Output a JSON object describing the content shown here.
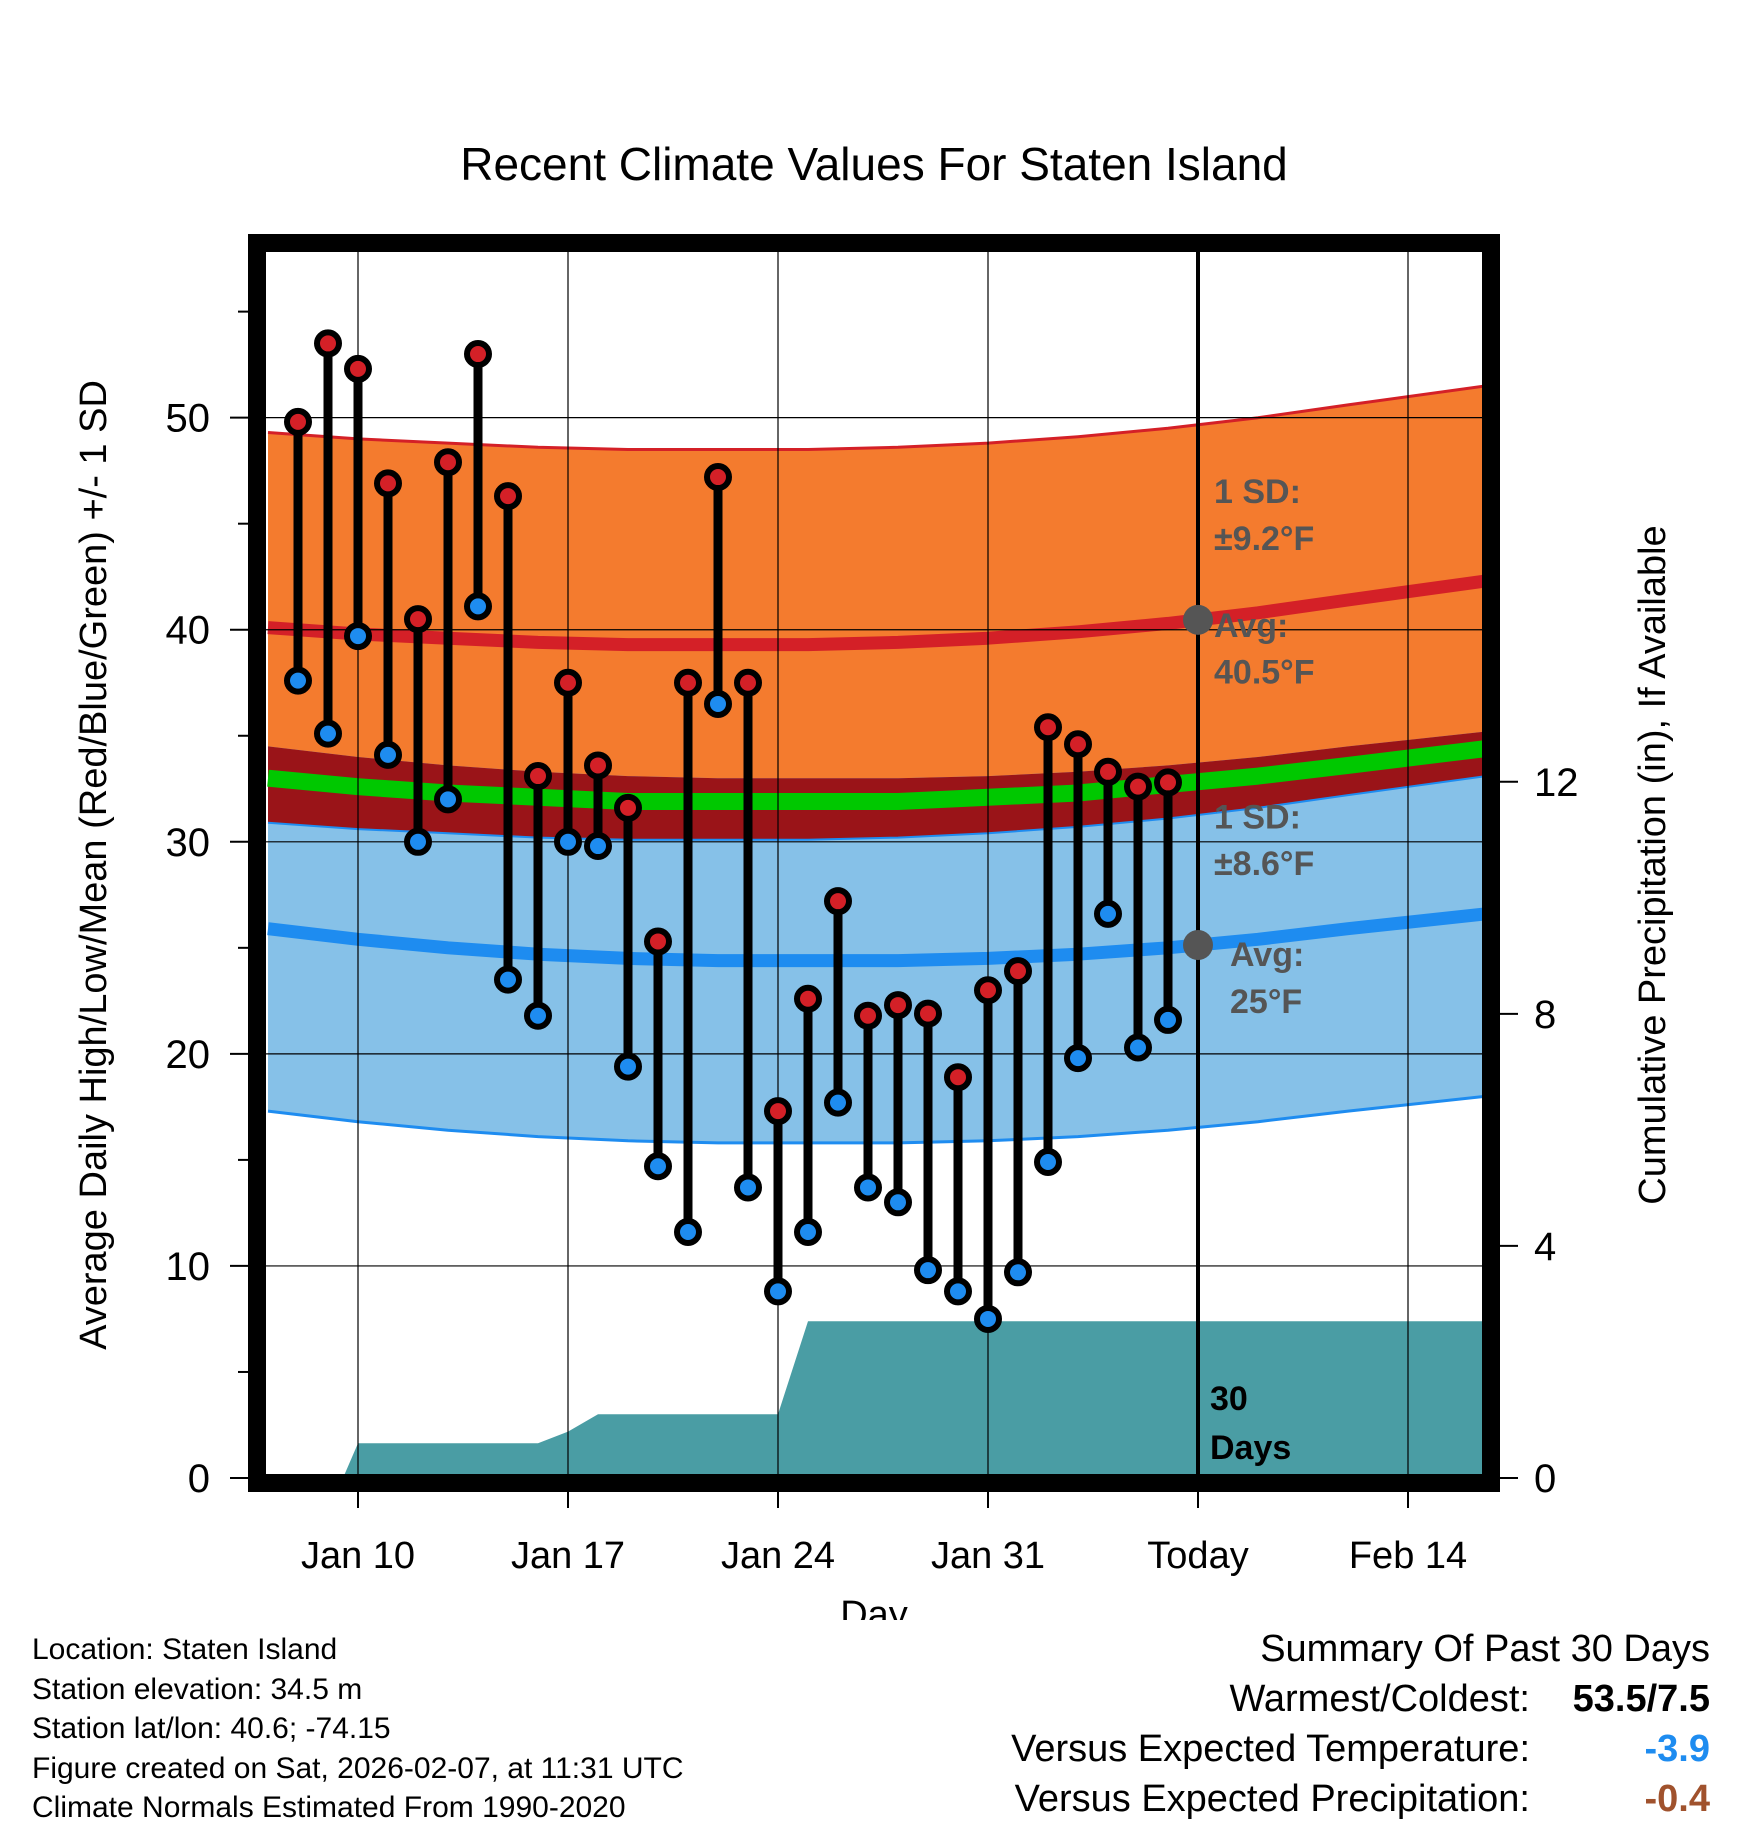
{
  "chart_data": {
    "type": "line",
    "title": "Recent Climate Values For Staten Island",
    "xlabel": "Day",
    "ylabel": "Average Daily High/Low/Mean (Red/Blue/Green) +/- 1 SD",
    "y2label": "Cumulative Precipitation (in), If Available",
    "x_tick_labels": [
      {
        "day": 10,
        "label": "Jan 10"
      },
      {
        "day": 17,
        "label": "Jan 17"
      },
      {
        "day": 24,
        "label": "Jan 24"
      },
      {
        "day": 31,
        "label": "Jan 31"
      },
      {
        "day": 38,
        "label": "Today"
      },
      {
        "day": 45,
        "label": "Feb 14"
      }
    ],
    "xlim": [
      6.8,
      47.6
    ],
    "today_day": 38,
    "ylim": [
      0,
      58
    ],
    "y_ticks": [
      0,
      10,
      20,
      30,
      40,
      50
    ],
    "y_minor_ticks": [
      5,
      15,
      25,
      35,
      45,
      55
    ],
    "y2lim": [
      0,
      21.2
    ],
    "y2_ticks": [
      0,
      4,
      8,
      12
    ],
    "days": [
      8,
      9,
      10,
      11,
      12,
      13,
      14,
      15,
      16,
      17,
      18,
      19,
      20,
      21,
      22,
      23,
      24,
      25,
      26,
      27,
      28,
      29,
      30,
      31,
      32,
      33,
      34,
      35,
      36,
      37
    ],
    "daily_high": [
      49.8,
      53.5,
      52.3,
      46.9,
      40.5,
      47.9,
      53.0,
      46.3,
      33.1,
      37.5,
      33.6,
      31.6,
      25.3,
      37.5,
      47.2,
      37.5,
      17.3,
      22.6,
      27.2,
      21.8,
      22.3,
      21.9,
      18.9,
      23.0,
      23.9,
      35.4,
      34.6,
      33.3,
      32.6,
      32.8
    ],
    "daily_low": [
      37.6,
      35.1,
      39.7,
      34.1,
      30.0,
      32.0,
      41.1,
      23.5,
      21.8,
      30.0,
      29.8,
      19.4,
      14.7,
      11.6,
      36.5,
      13.7,
      8.8,
      11.6,
      17.7,
      13.7,
      13.0,
      9.8,
      8.8,
      7.5,
      9.7,
      14.9,
      19.8,
      26.6,
      20.3,
      21.6
    ],
    "normal_high": {
      "days": [
        7,
        10,
        13,
        16,
        19,
        22,
        25,
        28,
        31,
        34,
        37,
        40,
        43,
        47.6
      ],
      "avg": [
        40.1,
        39.8,
        39.6,
        39.4,
        39.3,
        39.3,
        39.3,
        39.4,
        39.6,
        39.9,
        40.3,
        40.8,
        41.4,
        42.3
      ],
      "sd": 9.2,
      "label_sd": "1 SD:",
      "label_sd_value": "±9.2°F",
      "label_avg": "Avg:",
      "label_avg_value": "40.5°F"
    },
    "normal_low": {
      "days": [
        7,
        10,
        13,
        16,
        19,
        22,
        25,
        28,
        31,
        34,
        37,
        40,
        43,
        47.6
      ],
      "avg": [
        25.9,
        25.4,
        25.0,
        24.7,
        24.5,
        24.4,
        24.4,
        24.4,
        24.5,
        24.7,
        25.0,
        25.4,
        25.9,
        26.6
      ],
      "sd": 8.6,
      "label_sd": "1 SD:",
      "label_sd_value": "±8.6°F",
      "label_avg": "Avg:",
      "label_avg_value": "25°F"
    },
    "normal_mean": {
      "days": [
        7,
        10,
        13,
        16,
        19,
        22,
        25,
        28,
        31,
        34,
        37,
        40,
        43,
        47.6
      ],
      "avg": [
        33.0,
        32.6,
        32.3,
        32.1,
        31.9,
        31.9,
        31.9,
        31.9,
        32.1,
        32.3,
        32.7,
        33.1,
        33.6,
        34.4
      ]
    },
    "cumulative_precip": {
      "days": [
        7,
        9.5,
        10,
        16,
        17,
        18,
        24,
        25,
        47.6
      ],
      "values": [
        0,
        0,
        0.6,
        0.6,
        0.8,
        1.1,
        1.1,
        2.7,
        2.7
      ]
    },
    "precip_label": "30 Days",
    "colors": {
      "high_band": "#f47b2e",
      "high_line": "#d42027",
      "low_band": "#86c1e8",
      "low_line": "#1e8cf0",
      "mean_band": "#9a1418",
      "mean_line": "#00c800",
      "precip": "#4a9da4",
      "high_dot": "#d42027",
      "low_dot": "#1e8cf0",
      "normal_marker": "#555555",
      "label_gray": "#555555"
    }
  },
  "info": {
    "location": "Location: Staten Island",
    "elevation": "Station elevation: 34.5 m",
    "latlon": "Station lat/lon: 40.6; -74.15",
    "created": "Figure created on Sat, 2026-02-07, at 11:31 UTC",
    "normals": "Climate Normals Estimated From 1990-2020"
  },
  "summary": {
    "title": "Summary Of Past 30 Days",
    "warm_cold_label": "Warmest/Coldest:",
    "warm_cold_value": "53.5/7.5",
    "temp_label": "Versus Expected Temperature:",
    "temp_value": "-3.9",
    "temp_color": "#1e8cf0",
    "precip_label": "Versus Expected Precipitation:",
    "precip_value": "-0.4",
    "precip_color": "#a0522d"
  }
}
